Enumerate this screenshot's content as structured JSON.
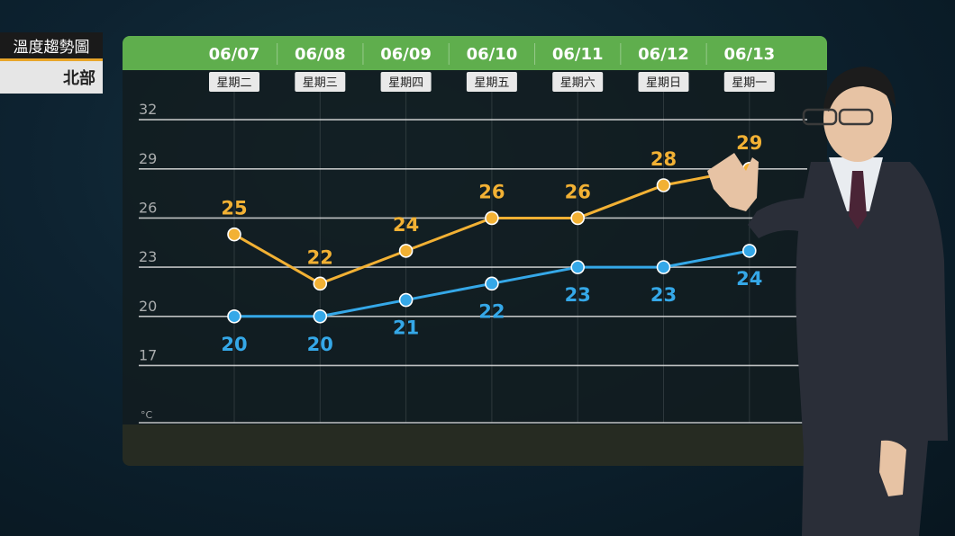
{
  "label": {
    "title": "溫度趨勢圖",
    "region": "北部"
  },
  "chart_data": {
    "type": "line",
    "categories": [
      "06/07",
      "06/08",
      "06/09",
      "06/10",
      "06/11",
      "06/12",
      "06/13"
    ],
    "weekdays": [
      "星期二",
      "星期三",
      "星期四",
      "星期五",
      "星期六",
      "星期日",
      "星期一"
    ],
    "series": [
      {
        "key": "high",
        "values": [
          25,
          22,
          24,
          26,
          26,
          28,
          29
        ],
        "color": "#f2b134"
      },
      {
        "key": "low",
        "values": [
          20,
          20,
          21,
          22,
          23,
          23,
          24
        ],
        "color": "#35a8e8"
      }
    ],
    "y_ticks": [
      32,
      29,
      26,
      23,
      20,
      17
    ],
    "y_unit": "°C",
    "ylim": [
      14.5,
      32.5
    ],
    "grid": true
  },
  "colors": {
    "header_green": "#5fae4d",
    "accent_orange": "#e8a52a"
  }
}
